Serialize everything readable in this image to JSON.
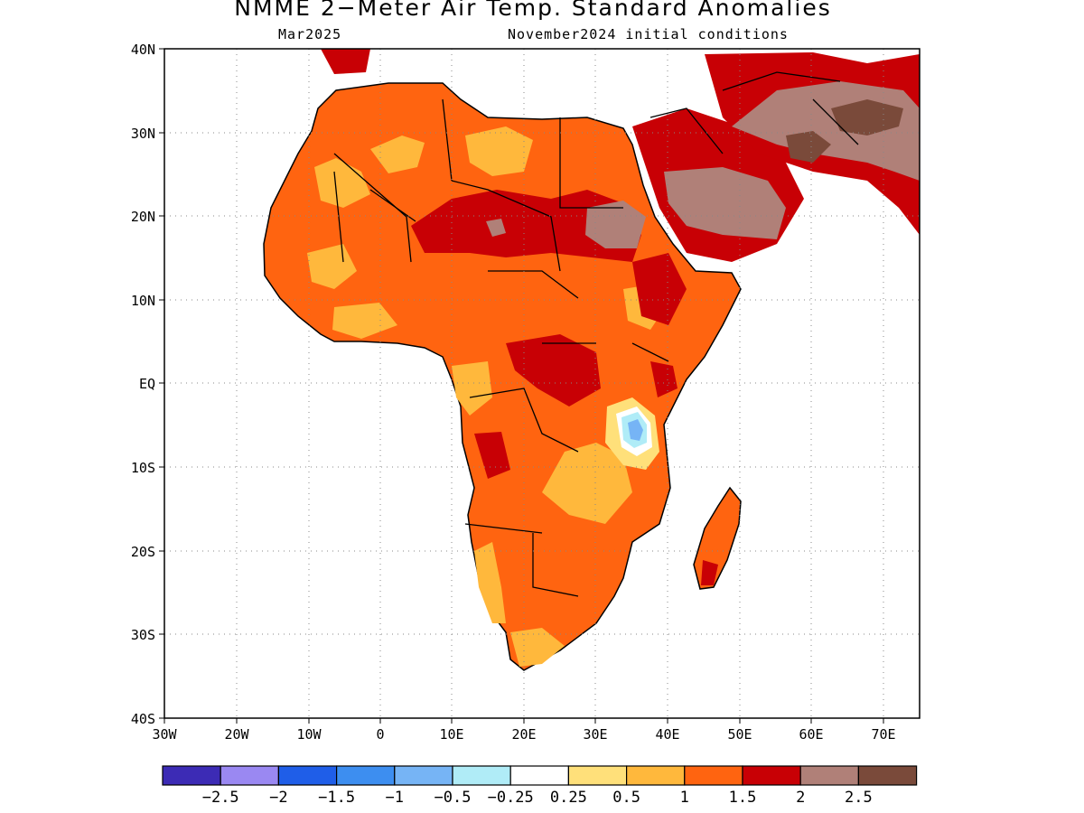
{
  "header": {
    "title": "NMME 2−Meter Air Temp. Standard Anomalies",
    "valid_month": "Mar2025",
    "initial_conditions": "November2024 initial conditions"
  },
  "axes": {
    "lat_labels": [
      "40N",
      "30N",
      "20N",
      "10N",
      "EQ",
      "10S",
      "20S",
      "30S",
      "40S"
    ],
    "lon_labels": [
      "30W",
      "20W",
      "10W",
      "0",
      "10E",
      "20E",
      "30E",
      "40E",
      "50E",
      "60E",
      "70E"
    ]
  },
  "legend": {
    "colors": [
      "#3c2bb5",
      "#9a88f2",
      "#1f5ee8",
      "#3d8ef0",
      "#76b4f5",
      "#b0ecf7",
      "#ffffff",
      "#ffe07a",
      "#ffb83c",
      "#ff6410",
      "#c80005",
      "#b08078",
      "#7a4a3a"
    ],
    "labels": [
      "−2.5",
      "−2",
      "−1.5",
      "−1",
      "−0.5",
      "−0.25",
      "0.25",
      "0.5",
      "1",
      "1.5",
      "2",
      "2.5"
    ]
  },
  "map": {
    "shading": [
      {
        "region": "sahara-sahel",
        "anomaly": "1.5"
      },
      {
        "region": "central-sahara-belt",
        "anomaly": "2"
      },
      {
        "region": "sudan-arabia",
        "anomaly": ">2.5"
      },
      {
        "region": "iran-pakistan",
        "anomaly": ">2.5"
      },
      {
        "region": "lake-victoria-east",
        "anomaly": "-0.5"
      },
      {
        "region": "southern-africa",
        "anomaly": "1.5"
      }
    ]
  }
}
